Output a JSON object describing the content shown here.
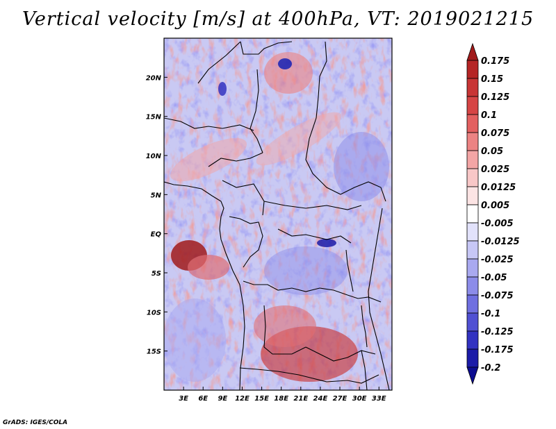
{
  "title": "Vertical velocity [m/s] at 400hPa, VT: 2019021215",
  "map": {
    "field": "vertical velocity",
    "level": "400hPa",
    "valid_time": "2019021215",
    "units": "m/s",
    "extent": {
      "lon_min": 0,
      "lon_max": 35,
      "lat_min": -20,
      "lat_max": 25
    },
    "lat_ticks": [
      {
        "label": "20N",
        "lat": 20
      },
      {
        "label": "15N",
        "lat": 15
      },
      {
        "label": "10N",
        "lat": 10
      },
      {
        "label": "5N",
        "lat": 5
      },
      {
        "label": "EQ",
        "lat": 0
      },
      {
        "label": "5S",
        "lat": -5
      },
      {
        "label": "10S",
        "lat": -10
      },
      {
        "label": "15S",
        "lat": -15
      }
    ],
    "lon_ticks": [
      {
        "label": "3E",
        "lon": 3
      },
      {
        "label": "6E",
        "lon": 6
      },
      {
        "label": "9E",
        "lon": 9
      },
      {
        "label": "12E",
        "lon": 12
      },
      {
        "label": "15E",
        "lon": 15
      },
      {
        "label": "18E",
        "lon": 18
      },
      {
        "label": "21E",
        "lon": 21
      },
      {
        "label": "24E",
        "lon": 24
      },
      {
        "label": "27E",
        "lon": 27
      },
      {
        "label": "30E",
        "lon": 30
      },
      {
        "label": "33E",
        "lon": 33
      }
    ]
  },
  "colorbar": {
    "labels": [
      "0.175",
      "0.15",
      "0.125",
      "0.1",
      "0.075",
      "0.05",
      "0.025",
      "0.0125",
      "0.005",
      "-0.005",
      "-0.0125",
      "-0.025",
      "-0.05",
      "-0.075",
      "-0.1",
      "-0.125",
      "-0.175",
      "-0.2"
    ],
    "colors": [
      "#a11a1a",
      "#b52525",
      "#c83535",
      "#d64545",
      "#e36060",
      "#ec8383",
      "#f3a5a5",
      "#f8c7c7",
      "#fce4e4",
      "#ffffff",
      "#e2e2fb",
      "#c7c7f6",
      "#a9a9f0",
      "#8c8ce9",
      "#6f6fe0",
      "#5050d3",
      "#3232c1",
      "#1b1ba8",
      "#0c0c90"
    ]
  },
  "credit": "GrADS: IGES/COLA"
}
